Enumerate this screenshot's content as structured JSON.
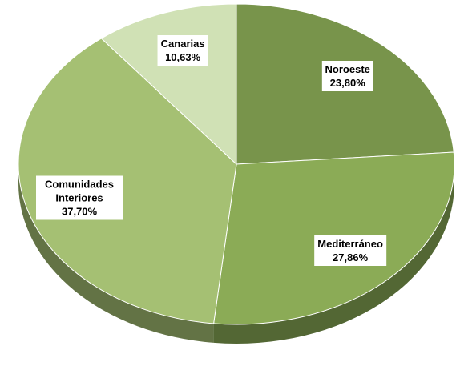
{
  "chart_data": {
    "type": "pie",
    "categories": [
      "Noroeste",
      "Mediterráneo",
      "Comunidades Interiores",
      "Canarias"
    ],
    "values": [
      23.8,
      27.86,
      37.7,
      10.63
    ],
    "value_labels": [
      "23,80%",
      "27,86%",
      "37,70%",
      "10,63%"
    ],
    "colors": [
      "#78944b",
      "#8bab56",
      "#a5c073",
      "#d0e1b5"
    ]
  }
}
